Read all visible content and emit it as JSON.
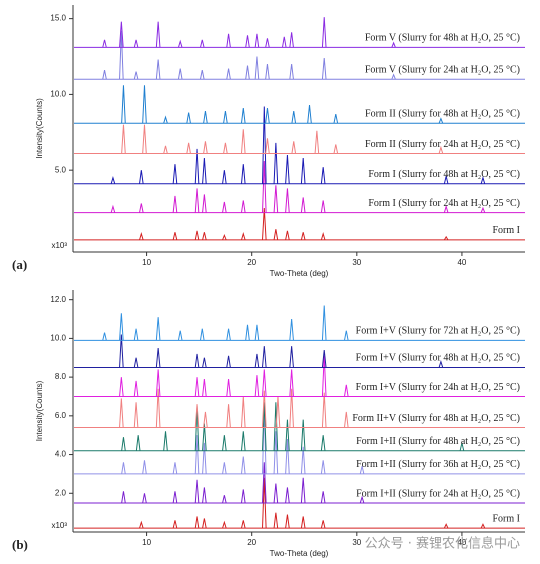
{
  "chart_data": [
    {
      "type": "line",
      "panel_label": "(a)",
      "xlabel": "Two-Theta (deg)",
      "ylabel": "Intensity(Counts)",
      "y_multiplier": "x10³",
      "xlim": [
        3,
        46
      ],
      "xticks": [
        10,
        20,
        30,
        40
      ],
      "ylim": [
        -0.4,
        15.9
      ],
      "yticks": [
        {
          "value": 5,
          "label": "5.0"
        },
        {
          "value": 10,
          "label": "10.0"
        },
        {
          "value": 15,
          "label": "15.0"
        }
      ],
      "series": [
        {
          "name": "Form I",
          "color": "#d42020",
          "baseline": 0.4,
          "x": [
            9.5,
            12.7,
            14.8,
            15.5,
            17.4,
            19.2,
            21.2,
            22.3,
            23.4,
            24.9,
            26.8,
            38.5
          ],
          "values": [
            0.8,
            0.9,
            1.0,
            0.9,
            0.7,
            0.8,
            2.5,
            1.1,
            1.0,
            0.9,
            0.8,
            0.6
          ]
        },
        {
          "name": "Form I (Slurry for 24h at H₂O, 25 °C)",
          "color": "#d21ad2",
          "baseline": 2.2,
          "x": [
            6.8,
            9.5,
            12.7,
            14.8,
            15.5,
            17.4,
            19.2,
            21.2,
            22.3,
            23.4,
            24.9,
            26.8,
            38.5,
            42
          ],
          "values": [
            2.6,
            2.8,
            3.3,
            3.8,
            3.4,
            2.9,
            3.0,
            5.6,
            4.0,
            3.8,
            3.2,
            3.0,
            2.6,
            2.5
          ]
        },
        {
          "name": "Form I (Slurry for 48h at H₂O, 25 °C)",
          "color": "#1a1ab4",
          "baseline": 4.1,
          "x": [
            6.8,
            9.5,
            12.7,
            14.8,
            15.5,
            17.4,
            19.2,
            21.2,
            22.3,
            23.4,
            24.9,
            26.8,
            38.5,
            42
          ],
          "values": [
            4.5,
            5.0,
            5.4,
            6.4,
            5.8,
            5.0,
            5.4,
            9.2,
            6.8,
            6.0,
            5.8,
            5.2,
            4.6,
            4.5
          ]
        },
        {
          "name": "Form II (Slurry for 24h at H₂O, 25 °C)",
          "color": "#f08080",
          "baseline": 6.1,
          "x": [
            7.8,
            9.8,
            11.8,
            14.0,
            15.6,
            17.5,
            19.2,
            21.5,
            24,
            26.2,
            28,
            38
          ],
          "values": [
            8.0,
            8.0,
            6.6,
            6.8,
            6.9,
            6.8,
            7.7,
            7.1,
            6.9,
            7.6,
            6.7,
            6.5
          ]
        },
        {
          "name": "Form II (Slurry for 48h at H₂O, 25 °C)",
          "color": "#2080d0",
          "baseline": 8.1,
          "x": [
            7.8,
            9.8,
            11.8,
            14.0,
            15.6,
            17.5,
            19.2,
            21.5,
            24,
            25.5,
            28,
            38
          ],
          "values": [
            10.6,
            10.6,
            8.5,
            8.8,
            8.9,
            8.9,
            9.1,
            9.1,
            8.9,
            9.3,
            8.7,
            8.4
          ]
        },
        {
          "name": "Form V (Slurry for 24h at H₂O, 25 °C)",
          "color": "#8080e0",
          "baseline": 11.0,
          "x": [
            6.0,
            7.6,
            9.0,
            11.1,
            13.2,
            15.3,
            17.8,
            19.6,
            20.5,
            21.5,
            23.8,
            26.9,
            33.5
          ],
          "values": [
            11.6,
            14.2,
            11.5,
            12.3,
            11.7,
            11.6,
            11.7,
            11.9,
            12.5,
            12.0,
            12.0,
            12.4,
            11.3
          ]
        },
        {
          "name": "Form V (Slurry for 48h at H₂O, 25 °C)",
          "color": "#8a2be2",
          "baseline": 13.1,
          "x": [
            6.0,
            7.6,
            9.0,
            11.1,
            13.2,
            15.3,
            17.8,
            19.6,
            20.5,
            21.5,
            23.1,
            23.8,
            26.9,
            33.5
          ],
          "values": [
            13.6,
            14.8,
            13.6,
            14.8,
            13.5,
            13.6,
            14.0,
            13.9,
            14.0,
            13.7,
            13.8,
            14.1,
            15.1,
            13.4
          ]
        }
      ]
    },
    {
      "type": "line",
      "panel_label": "(b)",
      "xlabel": "Two-Theta (deg)",
      "ylabel": "Intensity(Counts)",
      "y_multiplier": "x10³",
      "watermark": "公众号 · 赛锂农化信息中心",
      "xlim": [
        3,
        46
      ],
      "xticks": [
        10,
        20,
        30,
        40
      ],
      "ylim": [
        0,
        12.5
      ],
      "yticks": [
        {
          "value": 2,
          "label": "2.0"
        },
        {
          "value": 4,
          "label": "4.0"
        },
        {
          "value": 6,
          "label": "6.0"
        },
        {
          "value": 8,
          "label": "8.0"
        },
        {
          "value": 10,
          "label": "10.0"
        },
        {
          "value": 12,
          "label": "12.0"
        }
      ],
      "series": [
        {
          "name": "Form I",
          "color": "#d42020",
          "baseline": 0.2,
          "x": [
            9.5,
            12.7,
            14.8,
            15.5,
            17.4,
            19.2,
            21.2,
            22.3,
            23.4,
            24.9,
            26.8,
            38.5,
            42
          ],
          "values": [
            0.5,
            0.6,
            0.8,
            0.7,
            0.5,
            0.6,
            2.8,
            1.0,
            0.9,
            0.8,
            0.6,
            0.4,
            0.4
          ]
        },
        {
          "name": "Form I+II (Slurry for 24h at H₂O, 25 °C)",
          "color": "#7b1fd0",
          "baseline": 1.5,
          "x": [
            7.8,
            9.8,
            12.7,
            14.8,
            15.5,
            17.4,
            19.2,
            21.2,
            22.3,
            23.4,
            24.9,
            26.8,
            30.5
          ],
          "values": [
            2.1,
            2.0,
            2.1,
            2.7,
            2.3,
            1.9,
            2.2,
            3.6,
            2.5,
            2.3,
            2.8,
            2.1,
            1.8
          ]
        },
        {
          "name": "Form I+II (Slurry for 36h at H₂O, 25 °C)",
          "color": "#9090e8",
          "baseline": 3.0,
          "x": [
            7.8,
            9.8,
            12.7,
            14.8,
            15.5,
            17.4,
            19.2,
            21.2,
            22.3,
            23.4,
            24.9,
            26.8,
            30.5
          ],
          "values": [
            3.6,
            3.7,
            3.6,
            5.0,
            4.6,
            3.6,
            3.9,
            6.4,
            5.2,
            4.8,
            4.4,
            3.7,
            3.4
          ]
        },
        {
          "name": "Form I+II (Slurry for 48h at H₂O, 25 °C)",
          "color": "#1a7a6a",
          "baseline": 4.2,
          "x": [
            7.8,
            9.2,
            11.8,
            14.8,
            15.5,
            17.4,
            19.2,
            21.2,
            22.3,
            23.4,
            24.9,
            26.8,
            40
          ],
          "values": [
            4.9,
            5.0,
            5.2,
            6.5,
            5.6,
            5.0,
            5.2,
            6.7,
            6.7,
            5.8,
            5.8,
            5.0,
            4.6
          ]
        },
        {
          "name": "Form II+V (Slurry for 48h at H₂O, 25 °C)",
          "color": "#f08080",
          "baseline": 5.4,
          "x": [
            7.6,
            9.0,
            11.1,
            14.8,
            15.6,
            17.8,
            19.2,
            21.2,
            22.5,
            23.8,
            26.9,
            29
          ],
          "values": [
            6.9,
            6.7,
            7.4,
            6.6,
            6.2,
            6.6,
            7.0,
            7.3,
            7.0,
            7.4,
            7.2,
            6.2
          ]
        },
        {
          "name": "Form I+V (Slurry for 24h at H₂O, 25 °C)",
          "color": "#e020e0",
          "baseline": 7.0,
          "x": [
            7.6,
            9.0,
            11.1,
            14.8,
            15.5,
            17.8,
            20.5,
            21.2,
            23.8,
            26.9,
            29
          ],
          "values": [
            8.0,
            7.8,
            8.4,
            8.0,
            7.9,
            7.9,
            8.1,
            8.4,
            8.4,
            9.1,
            7.6
          ]
        },
        {
          "name": "Form I+V (Slurry for 48h at H₂O, 25 °C)",
          "color": "#2020a0",
          "baseline": 8.5,
          "x": [
            7.6,
            9.0,
            11.1,
            14.8,
            15.5,
            17.8,
            20.5,
            21.2,
            23.8,
            26.9,
            38
          ],
          "values": [
            10.2,
            9.0,
            9.5,
            9.2,
            9.0,
            9.1,
            9.2,
            9.6,
            9.6,
            9.4,
            8.8
          ]
        },
        {
          "name": "Form I+V (Slurry for 72h at H₂O, 25 °C)",
          "color": "#3090e0",
          "baseline": 9.9,
          "x": [
            6.0,
            7.6,
            9.0,
            11.1,
            13.2,
            15.3,
            17.8,
            19.6,
            20.5,
            23.8,
            26.9,
            29
          ],
          "values": [
            10.3,
            11.3,
            10.5,
            11.1,
            10.4,
            10.5,
            10.5,
            10.7,
            10.7,
            11.0,
            11.7,
            10.4
          ]
        }
      ]
    }
  ]
}
